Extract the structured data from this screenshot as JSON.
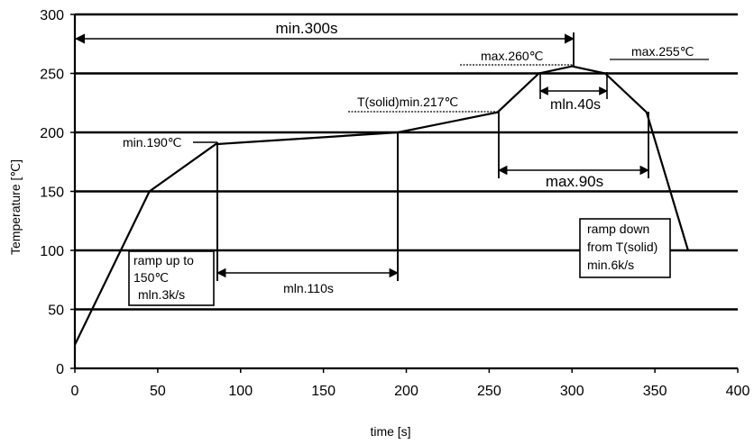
{
  "chart_data": {
    "type": "line",
    "xlabel": "time [s]",
    "ylabel": "Temperature [℃]",
    "xlim": [
      0,
      400
    ],
    "ylim": [
      0,
      300
    ],
    "xticks": [
      0,
      50,
      100,
      150,
      200,
      250,
      300,
      350,
      400
    ],
    "yticks": [
      0,
      50,
      100,
      150,
      200,
      250,
      300
    ],
    "grid": "horizontal",
    "series": [
      {
        "x": [
          0,
          45,
          85,
          195,
          255,
          280,
          300,
          320,
          345,
          370
        ],
        "y": [
          20,
          150,
          190,
          200,
          217,
          250,
          256,
          250,
          217,
          100
        ]
      }
    ],
    "annotations": {
      "min300s": "min.300s",
      "max260": "max.260℃",
      "max255": "max.255℃",
      "tsolid217": "T(solid)min.217℃",
      "min40s": "mln.40s",
      "min190": "min.190℃",
      "max90s": "max.90s",
      "min110s": "mln.110s",
      "ramp_up": [
        "ramp up to",
        "150℃",
        "mln.3k/s"
      ],
      "ramp_down": [
        "ramp down",
        "from T(solid)",
        "min.6k/s"
      ]
    }
  }
}
